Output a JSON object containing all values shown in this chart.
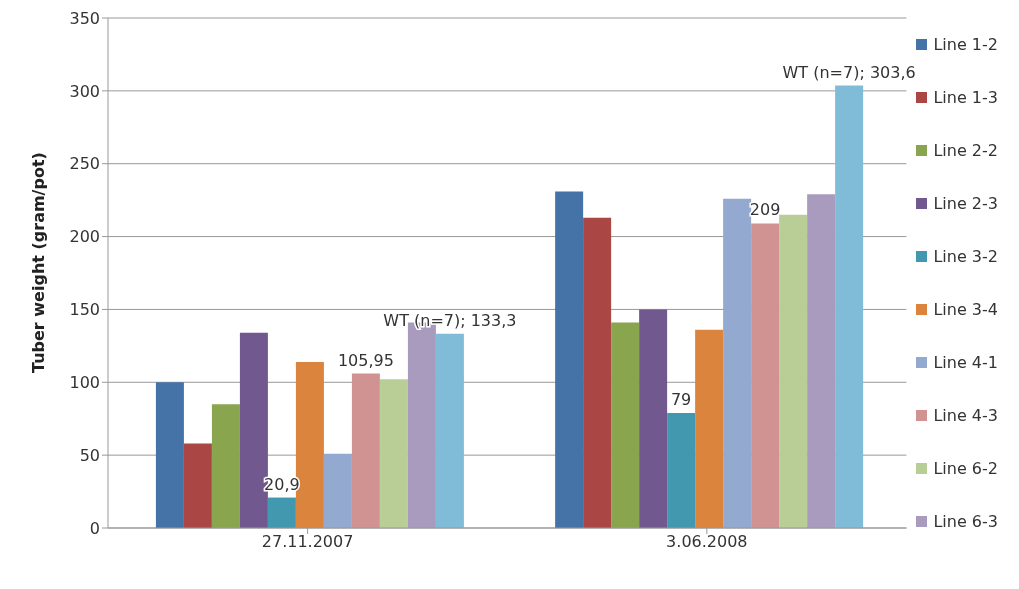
{
  "chart_data": {
    "type": "bar",
    "ylabel": "Tuber weight (gram/pot)",
    "categories": [
      "27.11.2007",
      "3.06.2008"
    ],
    "series": [
      {
        "name": "Line 1-2",
        "color": "#4572a7",
        "values": [
          100,
          231
        ]
      },
      {
        "name": "Line 1-3",
        "color": "#aa4643",
        "values": [
          58,
          213
        ]
      },
      {
        "name": "Line 2-2",
        "color": "#89a54e",
        "values": [
          85,
          141
        ]
      },
      {
        "name": "Line 2-3",
        "color": "#71588f",
        "values": [
          134,
          150
        ]
      },
      {
        "name": "Line 3-2",
        "color": "#4198af",
        "values": [
          20.9,
          79
        ],
        "value_labels": [
          "20,9",
          "79"
        ]
      },
      {
        "name": "Line 3-4",
        "color": "#db843d",
        "values": [
          114,
          136
        ]
      },
      {
        "name": "Line 4-1",
        "color": "#93a9cf",
        "values": [
          51,
          226
        ]
      },
      {
        "name": "Line 4-3",
        "color": "#d19392",
        "values": [
          105.95,
          209
        ],
        "value_labels": [
          "105,95",
          "209"
        ]
      },
      {
        "name": "Line 6-2",
        "color": "#b9cd96",
        "values": [
          102,
          215
        ]
      },
      {
        "name": "Line 6-3",
        "color": "#a99bbd",
        "values": [
          141,
          229
        ]
      },
      {
        "color": "#80bcd8",
        "values": [
          133.3,
          303.6
        ],
        "value_labels": [
          "WT (n=7); 133,3",
          "WT (n=7); 303,6"
        ]
      }
    ],
    "ylim": [
      0,
      350
    ],
    "yticks": [
      0,
      50,
      100,
      150,
      200,
      250,
      300,
      350
    ],
    "grid": "y",
    "legend": "right"
  }
}
